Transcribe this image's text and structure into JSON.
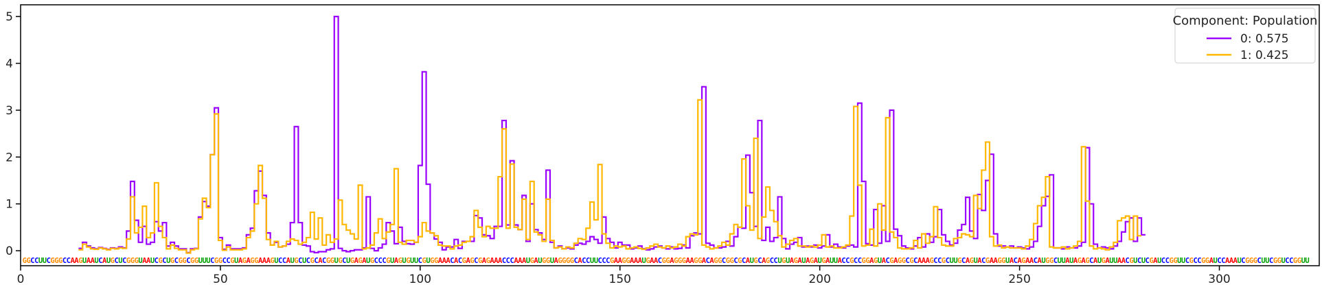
{
  "chart_data": {
    "type": "line",
    "step": true,
    "xlim": [
      0,
      325
    ],
    "ylim": [
      -0.32,
      5.25
    ],
    "xticks": [
      0,
      50,
      100,
      150,
      200,
      250,
      300
    ],
    "yticks": [
      0,
      1,
      2,
      3,
      4,
      5
    ],
    "legend": {
      "title": "Component: Population",
      "placement": "top-right"
    },
    "sequence": "GGCCUUCGGGCCAAGUAAUCAUGCUCGGGUAAUCGCUGCGGCGGUUUCGGCCGUAGAGGAAAGUCCAUGCUCGCACGGUGCUGAGAUGCCCGUAGUGUUCGUGGAAACACGAGCGAGAAACCCAAAUGAUGGUAGGGGCACCUUCCCGAAGGAAAUGAACGGAGGGAAGGACAGGCGGCGCAUGCAGCCUGUAGAUAGAUGAUUACCGCCGGAGUACGAGGCGCAAAGCCGCUUGCAGUACGAAGGUACAGAACAUGGCUUAUAGAGCAUGAUUAACGUCUCGAUCCGGUUCGCCGGAUCCAAAUCGGGCUUCGGUCCGGUU",
    "base_colors": {
      "A": "#ff0000",
      "C": "#0000ff",
      "G": "#ff8c00",
      "U": "#00a000"
    },
    "x_start": 15,
    "series": [
      {
        "name": "0: 0.575",
        "color": "#9a00ff",
        "values": [
          0.05,
          0.18,
          0.1,
          0.06,
          0.04,
          0.07,
          0.05,
          0.03,
          0.06,
          0.05,
          0.08,
          0.06,
          0.42,
          1.48,
          0.65,
          0.18,
          0.52,
          0.14,
          0.18,
          0.62,
          0.42,
          0.6,
          0.1,
          0.18,
          0.1,
          0.04,
          0.04,
          -0.04,
          0.04,
          0.05,
          0.72,
          1.05,
          0.95,
          2.05,
          3.05,
          0.28,
          0.03,
          0.12,
          0.04,
          0.04,
          0.04,
          0.06,
          0.34,
          0.48,
          1.28,
          1.7,
          1.18,
          0.38,
          0.12,
          0.18,
          0.08,
          0.1,
          0.14,
          0.6,
          2.65,
          0.6,
          0.12,
          0.1,
          -0.02,
          -0.04,
          -0.02,
          -0.02,
          0.02,
          0.04,
          5.0,
          0.05,
          0.0,
          -0.02,
          0.0,
          0.02,
          0.02,
          0.06,
          1.15,
          0.05,
          0.0,
          0.06,
          0.14,
          0.6,
          0.42,
          0.15,
          0.5,
          0.2,
          0.15,
          0.14,
          0.18,
          1.82,
          3.82,
          1.42,
          0.38,
          0.25,
          0.18,
          0.02,
          0.08,
          0.08,
          0.24,
          0.05,
          0.2,
          0.2,
          0.2,
          0.75,
          0.7,
          0.34,
          0.32,
          0.26,
          0.52,
          0.52,
          2.78,
          0.55,
          1.92,
          0.55,
          0.45,
          1.18,
          0.2,
          1.0,
          0.45,
          0.38,
          0.24,
          1.72,
          0.18,
          0.06,
          0.1,
          0.04,
          0.06,
          0.04,
          0.12,
          0.16,
          0.14,
          0.2,
          0.3,
          0.24,
          0.16,
          0.72,
          0.26,
          0.18,
          0.06,
          0.18,
          0.12,
          0.12,
          0.04,
          0.06,
          0.1,
          0.04,
          0.02,
          0.04,
          0.08,
          0.1,
          0.06,
          0.04,
          0.08,
          0.04,
          0.05,
          0.12,
          0.06,
          0.32,
          0.38,
          0.36,
          3.5,
          0.16,
          0.12,
          0.06,
          0.06,
          0.08,
          0.2,
          0.1,
          0.3,
          0.5,
          0.48,
          2.04,
          1.24,
          0.52,
          2.78,
          0.22,
          0.5,
          0.2,
          0.28,
          1.15,
          0.26,
          0.04,
          0.14,
          0.18,
          0.28,
          0.08,
          0.1,
          0.08,
          0.12,
          0.06,
          0.1,
          0.34,
          0.08,
          0.14,
          0.08,
          0.06,
          0.1,
          0.12,
          0.08,
          3.15,
          1.48,
          0.15,
          0.12,
          0.88,
          0.16,
          0.96,
          0.2,
          3.0,
          0.46,
          0.32,
          0.1,
          0.06,
          0.04,
          0.1,
          0.28,
          0.08,
          0.36,
          0.18,
          0.3,
          0.88,
          0.34,
          0.2,
          0.12,
          0.16,
          0.44,
          0.56,
          1.14,
          0.42,
          0.26,
          1.2,
          0.86,
          1.5,
          2.06,
          0.36,
          0.1,
          0.1,
          0.08,
          0.1,
          0.06,
          0.08,
          0.06,
          0.04,
          0.08,
          0.2,
          0.52,
          0.96,
          1.16,
          1.62,
          0.06,
          0.06,
          0.04,
          0.08,
          0.06,
          0.06,
          0.1,
          0.18,
          2.2,
          1.0,
          0.14,
          0.06,
          0.08,
          0.06,
          0.04,
          0.1,
          0.2,
          0.4,
          0.62,
          0.7,
          0.2,
          0.7,
          0.34
        ]
      },
      {
        "name": "1: 0.425",
        "color": "#ffb700",
        "values": [
          0.02,
          0.14,
          0.08,
          0.04,
          0.03,
          0.06,
          0.04,
          0.02,
          0.05,
          0.04,
          0.06,
          0.05,
          0.25,
          1.15,
          0.38,
          0.5,
          0.95,
          0.28,
          0.38,
          1.45,
          0.52,
          0.28,
          0.04,
          0.12,
          0.05,
          0.02,
          0.02,
          -0.05,
          0.02,
          0.04,
          0.68,
          1.12,
          0.92,
          2.05,
          2.92,
          0.22,
          0.01,
          0.08,
          0.02,
          0.02,
          0.02,
          0.04,
          0.28,
          0.42,
          1.0,
          1.82,
          1.12,
          0.24,
          0.12,
          0.2,
          0.08,
          0.1,
          0.2,
          0.25,
          0.22,
          0.14,
          0.18,
          0.28,
          0.82,
          0.25,
          0.7,
          0.12,
          0.34,
          0.18,
          0.25,
          1.08,
          0.56,
          0.44,
          0.36,
          0.25,
          1.4,
          0.04,
          0.06,
          0.12,
          0.38,
          0.68,
          0.26,
          0.4,
          0.56,
          1.75,
          0.18,
          0.14,
          0.22,
          0.22,
          0.18,
          0.3,
          0.6,
          0.42,
          0.38,
          0.32,
          0.12,
          0.1,
          0.1,
          0.04,
          0.1,
          0.12,
          0.18,
          0.2,
          0.3,
          0.86,
          0.5,
          0.3,
          0.52,
          0.48,
          0.48,
          1.58,
          2.6,
          0.48,
          1.85,
          0.5,
          0.45,
          1.1,
          0.24,
          1.48,
          0.4,
          0.34,
          0.2,
          1.1,
          0.22,
          0.06,
          0.08,
          0.04,
          0.08,
          0.06,
          0.16,
          0.26,
          0.24,
          0.48,
          1.04,
          0.66,
          1.84,
          0.36,
          0.16,
          0.06,
          0.1,
          0.08,
          0.1,
          0.04,
          0.06,
          0.08,
          0.05,
          0.03,
          0.06,
          0.1,
          0.14,
          0.08,
          0.06,
          0.1,
          0.06,
          0.08,
          0.14,
          0.1,
          0.3,
          0.36,
          0.34,
          3.22,
          0.12,
          0.08,
          0.04,
          0.06,
          0.1,
          0.18,
          0.12,
          0.36,
          0.56,
          0.5,
          1.96,
          0.96,
          0.44,
          2.4,
          0.26,
          0.72,
          1.36,
          0.86,
          0.62,
          0.32,
          0.08,
          0.14,
          0.22,
          0.26,
          0.1,
          0.1,
          0.08,
          0.1,
          0.08,
          0.12,
          0.34,
          0.08,
          0.1,
          0.06,
          0.06,
          0.08,
          0.12,
          0.74,
          3.08,
          1.4,
          0.1,
          0.12,
          0.46,
          0.1,
          1.0,
          0.44,
          2.84,
          0.4,
          0.28,
          0.06,
          0.04,
          0.04,
          0.06,
          0.22,
          0.06,
          0.36,
          0.16,
          0.3,
          0.94,
          0.28,
          0.12,
          0.1,
          0.1,
          0.26,
          0.28,
          0.36,
          0.34,
          0.3,
          1.18,
          0.9,
          1.72,
          2.32,
          0.3,
          0.1,
          0.12,
          0.06,
          0.08,
          0.06,
          0.06,
          0.06,
          0.04,
          0.1,
          0.24,
          0.58,
          0.96,
          1.14,
          1.58,
          0.08,
          0.06,
          0.06,
          0.08,
          0.04,
          0.06,
          0.1,
          0.2,
          2.22,
          1.06,
          0.1,
          0.04,
          0.06,
          0.04,
          0.02,
          0.08,
          0.18,
          0.64,
          0.7,
          0.74,
          0.24,
          0.74,
          0.32
        ]
      }
    ]
  }
}
